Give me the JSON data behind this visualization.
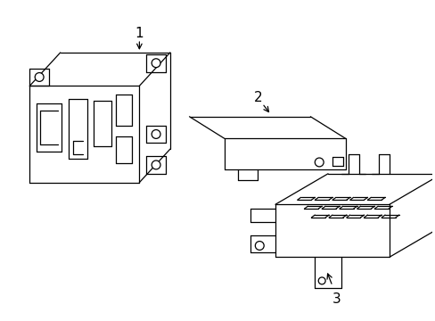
{
  "background_color": "#ffffff",
  "line_color": "#000000",
  "label_color": "#000000",
  "figsize": [
    4.89,
    3.6
  ],
  "dpi": 100,
  "lw": 0.9
}
